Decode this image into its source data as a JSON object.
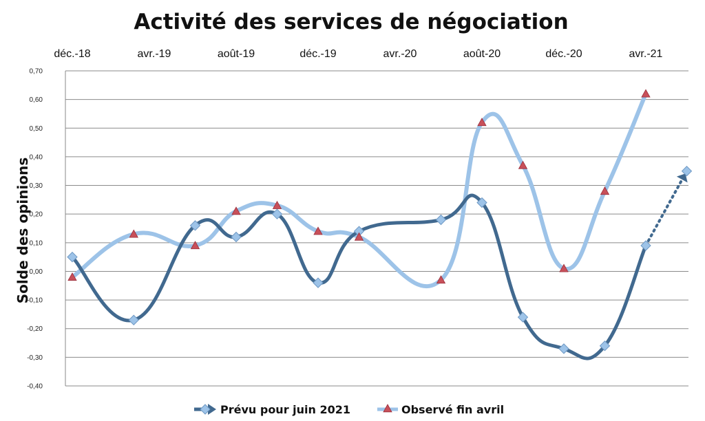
{
  "chart_data": {
    "type": "line",
    "title": "Activité des services de négociation",
    "xlabel": "",
    "ylabel": "Solde des opinions",
    "x_tick_labels": [
      "déc.-18",
      "avr.-19",
      "août-19",
      "déc.-19",
      "avr.-20",
      "août-20",
      "déc.-20",
      "avr.-21"
    ],
    "y_tick_labels": [
      "0,70",
      "0,60",
      "0,50",
      "0,40",
      "0,30",
      "0,20",
      "0,10",
      "0,00",
      "-0,10",
      "-0,20",
      "-0,30",
      "-0,40"
    ],
    "ylim": [
      -0.4,
      0.7
    ],
    "grid": "horizontal",
    "legend_position": "bottom",
    "x_dates": [
      "2018-12",
      "2019-02",
      "2019-04",
      "2019-06",
      "2019-08",
      "2019-10",
      "2019-12",
      "2020-02",
      "2020-04",
      "2020-06",
      "2020-08",
      "2020-10",
      "2020-12",
      "2021-02",
      "2021-04",
      "2021-06"
    ],
    "series": [
      {
        "name": "Prévu pour juin 2021",
        "color": "#41698f",
        "marker": "diamond",
        "points": [
          [
            "2018-12",
            0.05
          ],
          [
            "2019-03",
            -0.17
          ],
          [
            "2019-06",
            0.16
          ],
          [
            "2019-08",
            0.12
          ],
          [
            "2019-10",
            0.2
          ],
          [
            "2019-12",
            -0.04
          ],
          [
            "2020-02",
            0.14
          ],
          [
            "2020-06",
            0.18
          ],
          [
            "2020-08",
            0.24
          ],
          [
            "2020-10",
            -0.16
          ],
          [
            "2020-12",
            -0.27
          ],
          [
            "2021-02",
            -0.26
          ],
          [
            "2021-04",
            0.09
          ]
        ],
        "forecast": [
          [
            "2021-04",
            0.09
          ],
          [
            "2021-06",
            0.35
          ]
        ]
      },
      {
        "name": "Observé fin avril",
        "color": "#9dc3e8",
        "marker": "triangle",
        "points": [
          [
            "2018-12",
            -0.02
          ],
          [
            "2019-03",
            0.13
          ],
          [
            "2019-06",
            0.09
          ],
          [
            "2019-08",
            0.21
          ],
          [
            "2019-10",
            0.23
          ],
          [
            "2019-12",
            0.14
          ],
          [
            "2020-02",
            0.12
          ],
          [
            "2020-06",
            -0.03
          ],
          [
            "2020-08",
            0.52
          ],
          [
            "2020-10",
            0.37
          ],
          [
            "2020-12",
            0.01
          ],
          [
            "2021-02",
            0.28
          ],
          [
            "2021-04",
            0.62
          ]
        ]
      }
    ]
  }
}
